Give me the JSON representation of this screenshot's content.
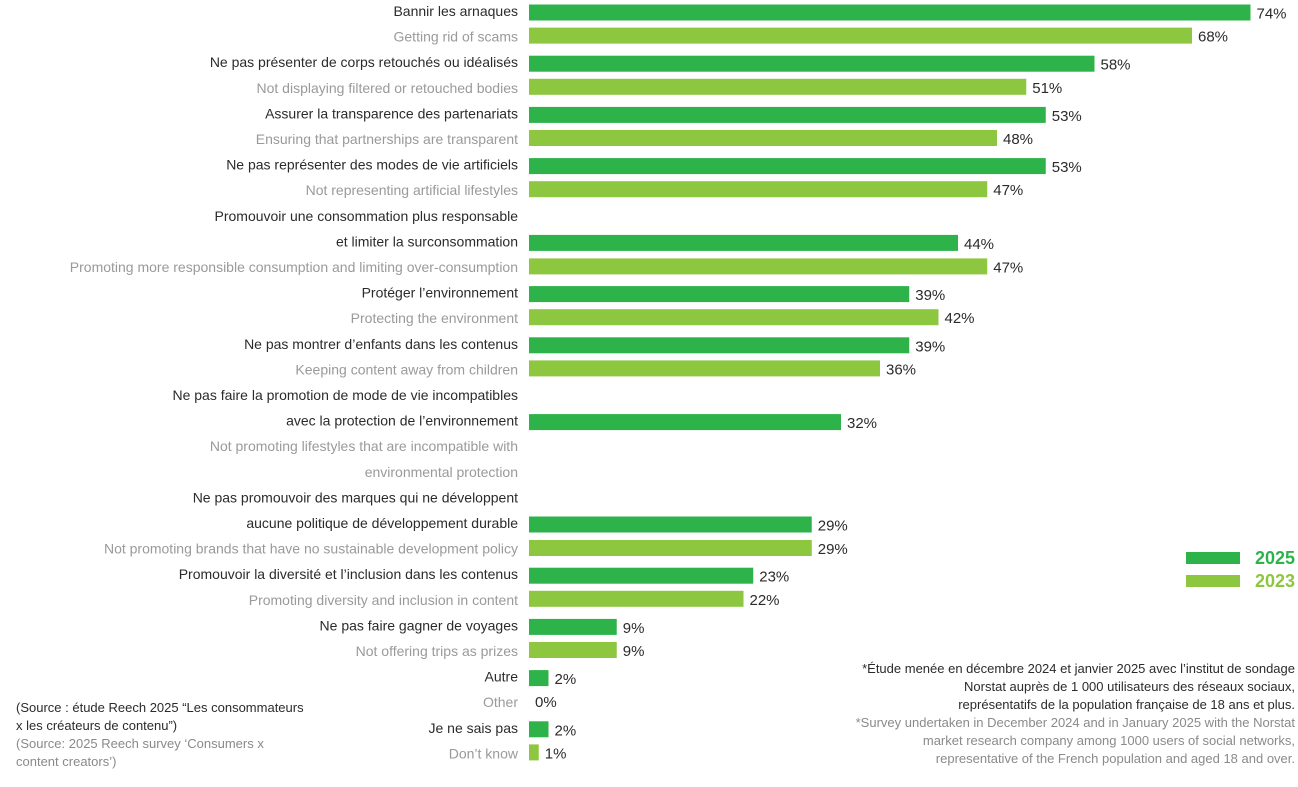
{
  "chart_data": {
    "type": "bar",
    "orientation": "horizontal",
    "value_unit": "%",
    "colors": {
      "2025": "#2eb34a",
      "2023": "#8dc63f"
    },
    "categories": [
      {
        "fr": [
          "Bannir les arnaques"
        ],
        "en": [
          "Getting rid of scams"
        ],
        "v2025": 74,
        "v2023": 68
      },
      {
        "fr": [
          "Ne pas présenter de corps retouchés ou idéalisés"
        ],
        "en": [
          "Not displaying filtered or retouched bodies"
        ],
        "v2025": 58,
        "v2023": 51
      },
      {
        "fr": [
          "Assurer la transparence des partenariats"
        ],
        "en": [
          "Ensuring that partnerships are transparent"
        ],
        "v2025": 53,
        "v2023": 48
      },
      {
        "fr": [
          "Ne pas représenter des modes de vie artificiels"
        ],
        "en": [
          "Not representing artificial lifestyles"
        ],
        "v2025": 53,
        "v2023": 47
      },
      {
        "fr": [
          "Promouvoir une consommation plus responsable",
          "et limiter la surconsommation"
        ],
        "en": [
          "Promoting more responsible consumption and limiting over-consumption"
        ],
        "v2025": 44,
        "v2023": 47
      },
      {
        "fr": [
          "Protéger l’environnement"
        ],
        "en": [
          "Protecting the environment"
        ],
        "v2025": 39,
        "v2023": 42
      },
      {
        "fr": [
          "Ne pas montrer d’enfants dans les contenus"
        ],
        "en": [
          "Keeping content away from children"
        ],
        "v2025": 39,
        "v2023": 36
      },
      {
        "fr": [
          "Ne pas faire la promotion de mode de vie incompatibles",
          "avec la protection de l’environnement"
        ],
        "en": [
          "Not promoting lifestyles that are incompatible with",
          "environmental protection"
        ],
        "v2025": 32,
        "v2023": null
      },
      {
        "fr": [
          "Ne pas promouvoir des marques qui ne développent",
          "aucune politique de développement durable"
        ],
        "en": [
          "Not promoting brands that have no sustainable development policy"
        ],
        "v2025": 29,
        "v2023": 29
      },
      {
        "fr": [
          "Promouvoir la diversité et l’inclusion dans les contenus"
        ],
        "en": [
          "Promoting diversity and inclusion in content"
        ],
        "v2025": 23,
        "v2023": 22
      },
      {
        "fr": [
          "Ne pas faire gagner de voyages"
        ],
        "en": [
          "Not offering trips as prizes"
        ],
        "v2025": 9,
        "v2023": 9
      },
      {
        "fr": [
          "Autre"
        ],
        "en": [
          "Other"
        ],
        "v2025": 2,
        "v2023": 0
      },
      {
        "fr": [
          "Je ne sais pas"
        ],
        "en": [
          "Don’t know"
        ],
        "v2025": 2,
        "v2023": 1
      }
    ],
    "series": [
      {
        "name": "2025",
        "key": "v2025"
      },
      {
        "name": "2023",
        "key": "v2023"
      }
    ],
    "legend": {
      "position": "right",
      "items": [
        "2025",
        "2023"
      ]
    }
  },
  "source": {
    "fr": [
      "(Source : étude Reech 2025 “Les consommateurs",
      "x les créateurs de contenu”)"
    ],
    "en": [
      "(Source: 2025 Reech survey ‘Consumers x",
      "content creators’)"
    ]
  },
  "note": {
    "fr": [
      "*Étude menée en décembre 2024 et janvier 2025 avec l’institut de sondage",
      "Norstat auprès de 1 000 utilisateurs des réseaux sociaux,",
      "représentatifs de la population française de 18 ans et plus."
    ],
    "en": [
      "*Survey undertaken in December 2024 and in January 2025 with the Norstat",
      "market research company among 1000 users of social networks,",
      "representative of the French population and aged 18 and over."
    ]
  }
}
